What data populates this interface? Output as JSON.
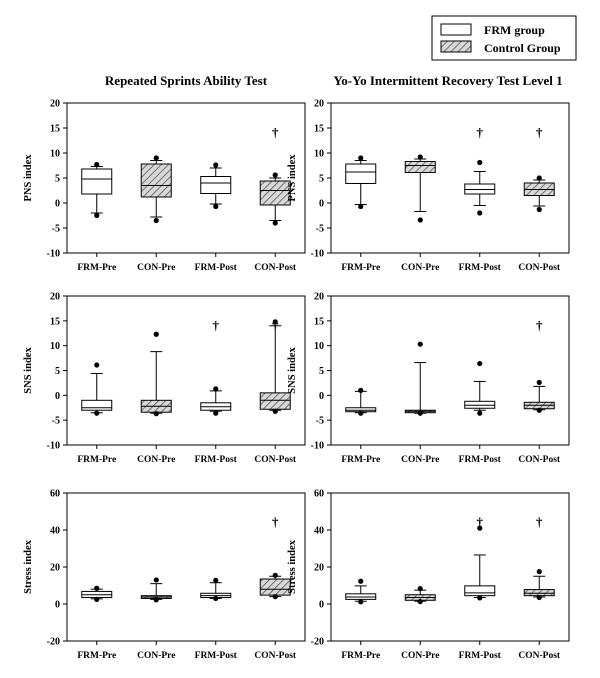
{
  "legend": {
    "entries": [
      {
        "label": "FRM group",
        "fill": "plain"
      },
      {
        "label": "Control Group",
        "fill": "hatched"
      }
    ]
  },
  "columns": [
    {
      "title": "Repeated Sprints Ability Test"
    },
    {
      "title": "Yo-Yo Intermittent Recovery Test Level 1"
    }
  ],
  "chart_data": [
    {
      "type": "boxplot",
      "column": 0,
      "row": 0,
      "title": "Repeated Sprints Ability Test",
      "ylabel": "PNS index",
      "ylim": [
        -10,
        20
      ],
      "yticks": [
        -10,
        -5,
        0,
        5,
        10,
        15,
        20
      ],
      "categories": [
        "FRM-Pre",
        "CON-Pre",
        "FRM-Post",
        "CON-Post"
      ],
      "boxes": [
        {
          "group": "FRM",
          "whisker_low": -2.0,
          "q1": 1.8,
          "median": 4.8,
          "q3": 6.8,
          "whisker_high": 7.3,
          "outliers": [
            7.7,
            -2.5
          ],
          "dagger": false
        },
        {
          "group": "CON",
          "whisker_low": -2.8,
          "q1": 1.2,
          "median": 3.5,
          "q3": 7.8,
          "whisker_high": 8.5,
          "outliers": [
            9.0,
            -3.5
          ],
          "dagger": false
        },
        {
          "group": "FRM",
          "whisker_low": -0.2,
          "q1": 1.9,
          "median": 4.0,
          "q3": 5.3,
          "whisker_high": 7.0,
          "outliers": [
            7.6,
            -0.7
          ],
          "dagger": false
        },
        {
          "group": "CON",
          "whisker_low": -3.5,
          "q1": -0.4,
          "median": 2.5,
          "q3": 4.4,
          "whisker_high": 5.0,
          "outliers": [
            5.6,
            -4.0
          ],
          "dagger": true
        }
      ],
      "dagger_symbol": "†"
    },
    {
      "type": "boxplot",
      "column": 1,
      "row": 0,
      "title": "Yo-Yo Intermittent Recovery Test Level 1",
      "ylabel": "PNS index",
      "ylim": [
        -10,
        20
      ],
      "yticks": [
        -10,
        -5,
        0,
        5,
        10,
        15,
        20
      ],
      "categories": [
        "FRM-Pre",
        "CON-Pre",
        "FRM-Post",
        "CON-Post"
      ],
      "boxes": [
        {
          "group": "FRM",
          "whisker_low": -0.3,
          "q1": 3.9,
          "median": 6.2,
          "q3": 7.8,
          "whisker_high": 8.5,
          "outliers": [
            9.0,
            -0.7
          ],
          "dagger": false
        },
        {
          "group": "CON",
          "whisker_low": -1.7,
          "q1": 6.1,
          "median": 7.5,
          "q3": 8.3,
          "whisker_high": 8.8,
          "outliers": [
            9.2,
            -3.4
          ],
          "dagger": false
        },
        {
          "group": "FRM",
          "whisker_low": -0.5,
          "q1": 1.8,
          "median": 2.7,
          "q3": 3.8,
          "whisker_high": 6.3,
          "outliers": [
            8.1,
            -2.0
          ],
          "dagger": true
        },
        {
          "group": "CON",
          "whisker_low": -0.6,
          "q1": 1.5,
          "median": 2.7,
          "q3": 4.0,
          "whisker_high": 4.6,
          "outliers": [
            5.0,
            -1.3
          ],
          "dagger": true
        }
      ],
      "dagger_symbol": "†"
    },
    {
      "type": "boxplot",
      "column": 0,
      "row": 1,
      "title": "Repeated Sprints Ability Test",
      "ylabel": "SNS index",
      "ylim": [
        -10,
        20
      ],
      "yticks": [
        -10,
        -5,
        0,
        5,
        10,
        15,
        20
      ],
      "categories": [
        "FRM-Pre",
        "CON-Pre",
        "FRM-Post",
        "CON-Post"
      ],
      "boxes": [
        {
          "group": "FRM",
          "whisker_low": -3.5,
          "q1": -3.0,
          "median": -2.5,
          "q3": -1.0,
          "whisker_high": 4.4,
          "outliers": [
            6.1,
            -3.6
          ],
          "dagger": false
        },
        {
          "group": "CON",
          "whisker_low": -3.6,
          "q1": -3.4,
          "median": -2.2,
          "q3": -1.0,
          "whisker_high": 8.8,
          "outliers": [
            12.3,
            -3.7
          ],
          "dagger": false
        },
        {
          "group": "FRM",
          "whisker_low": -3.2,
          "q1": -3.0,
          "median": -2.3,
          "q3": -1.5,
          "whisker_high": 0.9,
          "outliers": [
            1.3,
            -3.6
          ],
          "dagger": true
        },
        {
          "group": "CON",
          "whisker_low": -3.0,
          "q1": -2.8,
          "median": -1.0,
          "q3": 0.5,
          "whisker_high": 14.0,
          "outliers": [
            14.8,
            -3.2
          ],
          "dagger": true
        }
      ],
      "dagger_symbol": "†"
    },
    {
      "type": "boxplot",
      "column": 1,
      "row": 1,
      "title": "Yo-Yo Intermittent Recovery Test Level 1",
      "ylabel": "SNS index",
      "ylim": [
        -10,
        20
      ],
      "yticks": [
        -10,
        -5,
        0,
        5,
        10,
        15,
        20
      ],
      "categories": [
        "FRM-Pre",
        "CON-Pre",
        "FRM-Post",
        "CON-Post"
      ],
      "boxes": [
        {
          "group": "FRM",
          "whisker_low": -3.5,
          "q1": -3.3,
          "median": -3.0,
          "q3": -2.5,
          "whisker_high": 0.8,
          "outliers": [
            1.0,
            -3.6
          ],
          "dagger": false
        },
        {
          "group": "CON",
          "whisker_low": -3.6,
          "q1": -3.5,
          "median": -3.2,
          "q3": -3.0,
          "whisker_high": 6.6,
          "outliers": [
            10.3,
            -3.6
          ],
          "dagger": false
        },
        {
          "group": "FRM",
          "whisker_low": -3.0,
          "q1": -2.6,
          "median": -2.0,
          "q3": -1.2,
          "whisker_high": 2.8,
          "outliers": [
            6.4,
            -3.6
          ],
          "dagger": false
        },
        {
          "group": "CON",
          "whisker_low": -2.9,
          "q1": -2.7,
          "median": -2.0,
          "q3": -1.4,
          "whisker_high": 1.8,
          "outliers": [
            2.6,
            -3.0
          ],
          "dagger": true
        }
      ],
      "dagger_symbol": "†"
    },
    {
      "type": "boxplot",
      "column": 0,
      "row": 2,
      "title": "Repeated Sprints Ability Test",
      "ylabel": "Stress index",
      "ylim": [
        -20,
        60
      ],
      "yticks": [
        -20,
        0,
        20,
        40,
        60
      ],
      "categories": [
        "FRM-Pre",
        "CON-Pre",
        "FRM-Post",
        "CON-Post"
      ],
      "boxes": [
        {
          "group": "FRM",
          "whisker_low": 2.8,
          "q1": 3.5,
          "median": 5.0,
          "q3": 6.8,
          "whisker_high": 8.0,
          "outliers": [
            8.5,
            2.5
          ],
          "dagger": false
        },
        {
          "group": "CON",
          "whisker_low": 2.5,
          "q1": 3.0,
          "median": 3.8,
          "q3": 4.5,
          "whisker_high": 11.0,
          "outliers": [
            13.0,
            2.3
          ],
          "dagger": false
        },
        {
          "group": "FRM",
          "whisker_low": 3.0,
          "q1": 3.5,
          "median": 4.5,
          "q3": 5.8,
          "whisker_high": 11.5,
          "outliers": [
            12.8,
            3.0
          ],
          "dagger": false
        },
        {
          "group": "CON",
          "whisker_low": 4.0,
          "q1": 4.8,
          "median": 8.0,
          "q3": 13.5,
          "whisker_high": 15.0,
          "outliers": [
            15.5,
            4.0
          ],
          "dagger": true
        }
      ],
      "dagger_symbol": "†"
    },
    {
      "type": "boxplot",
      "column": 1,
      "row": 2,
      "title": "Yo-Yo Intermittent Recovery Test Level 1",
      "ylabel": "Stress index",
      "ylim": [
        -20,
        60
      ],
      "yticks": [
        -20,
        0,
        20,
        40,
        60
      ],
      "categories": [
        "FRM-Pre",
        "CON-Pre",
        "FRM-Post",
        "CON-Post"
      ],
      "boxes": [
        {
          "group": "FRM",
          "whisker_low": 1.5,
          "q1": 2.5,
          "median": 3.8,
          "q3": 5.5,
          "whisker_high": 9.8,
          "outliers": [
            12.3,
            1.2
          ],
          "dagger": false
        },
        {
          "group": "CON",
          "whisker_low": 1.5,
          "q1": 2.0,
          "median": 3.5,
          "q3": 5.0,
          "whisker_high": 7.5,
          "outliers": [
            8.3,
            1.3
          ],
          "dagger": false
        },
        {
          "group": "FRM",
          "whisker_low": 3.5,
          "q1": 4.5,
          "median": 6.0,
          "q3": 9.8,
          "whisker_high": 26.5,
          "outliers": [
            41.0,
            3.3
          ],
          "dagger": true
        },
        {
          "group": "CON",
          "whisker_low": 3.8,
          "q1": 4.5,
          "median": 5.8,
          "q3": 7.8,
          "whisker_high": 15.0,
          "outliers": [
            17.5,
            3.5
          ],
          "dagger": true
        }
      ],
      "dagger_symbol": "†"
    }
  ]
}
